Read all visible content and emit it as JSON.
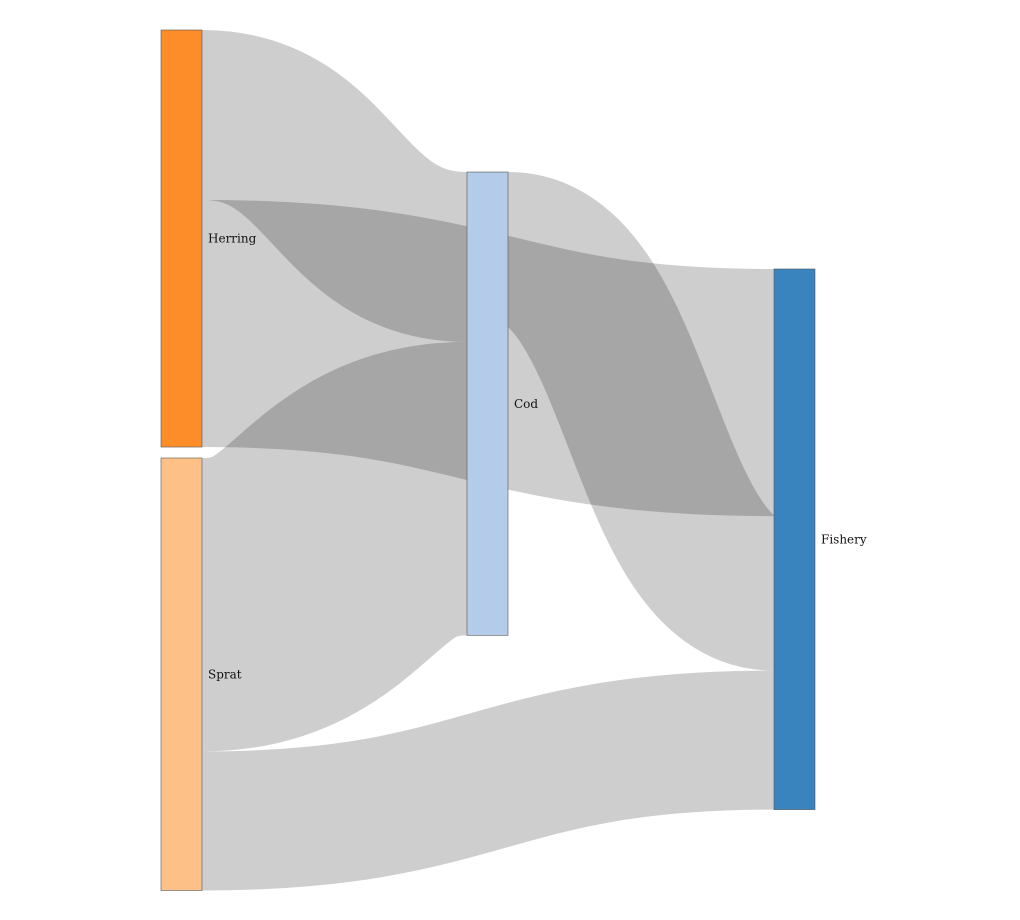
{
  "diagram": {
    "type": "sankey",
    "nodes": [
      {
        "id": "herring",
        "label": "Herring",
        "color": "#fd8d28"
      },
      {
        "id": "sprat",
        "label": "Sprat",
        "color": "#fdc086"
      },
      {
        "id": "cod",
        "label": "Cod",
        "color": "#b4cbe9"
      },
      {
        "id": "fishery",
        "label": "Fishery",
        "color": "#3983be"
      }
    ],
    "links": [
      {
        "source": "herring",
        "target": "cod",
        "value": 55
      },
      {
        "source": "herring",
        "target": "fishery",
        "value": 80
      },
      {
        "source": "sprat",
        "target": "cod",
        "value": 95
      },
      {
        "source": "sprat",
        "target": "fishery",
        "value": 45
      },
      {
        "source": "cod",
        "target": "fishery",
        "value": 50
      }
    ],
    "link_color": "#bdbdbd",
    "node_stroke": "#555555"
  }
}
